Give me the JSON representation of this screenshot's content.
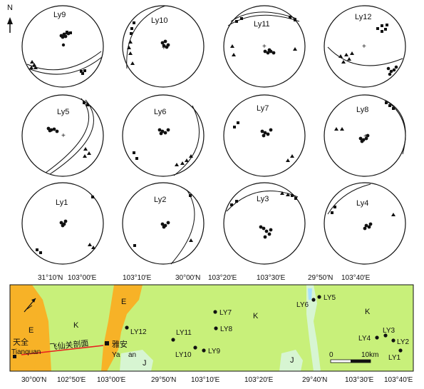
{
  "north_label": "N",
  "stereonets": [
    {
      "id": "Ly9",
      "label": "Ly9"
    },
    {
      "id": "Ly10",
      "label": "Ly10"
    },
    {
      "id": "Ly11",
      "label": "Ly11"
    },
    {
      "id": "Ly12",
      "label": "Ly12"
    },
    {
      "id": "Ly5",
      "label": "Ly5"
    },
    {
      "id": "Ly6",
      "label": "Ly6"
    },
    {
      "id": "Ly7",
      "label": "Ly7"
    },
    {
      "id": "Ly8",
      "label": "Ly8"
    },
    {
      "id": "Ly1",
      "label": "Ly1"
    },
    {
      "id": "Ly2",
      "label": "Ly2"
    },
    {
      "id": "Ly3",
      "label": "Ly3"
    },
    {
      "id": "Ly4",
      "label": "Ly4"
    }
  ],
  "map": {
    "top_coords": [
      {
        "text": "31°10′N"
      },
      {
        "text": "103°00′E"
      },
      {
        "text": "103°10′E"
      },
      {
        "text": "30°00′N"
      },
      {
        "text": "103°20′E"
      },
      {
        "text": "103°30′E"
      },
      {
        "text": "29°50′N"
      },
      {
        "text": "103°40′E"
      }
    ],
    "bottom_coords": [
      {
        "text": "30°00′N"
      },
      {
        "text": "102°50′E"
      },
      {
        "text": "103°00′E"
      },
      {
        "text": "29°50′N"
      },
      {
        "text": "103°10′E"
      },
      {
        "text": "103°20′E"
      },
      {
        "text": "29°40′N"
      },
      {
        "text": "103°30′E"
      },
      {
        "text": "103°40′E"
      }
    ],
    "units": {
      "E1": "E",
      "K1": "K",
      "E2": "E",
      "K2": "K",
      "K3": "K",
      "J1": "J",
      "J2": "J"
    },
    "places": {
      "tianquan_cn": "天全",
      "tianquan_en": "Tianquan",
      "yaan_cn": "雅安",
      "yaan_en_1": "Ya",
      "yaan_en_2": "an",
      "profile": "飞仙关剖面"
    },
    "sites": [
      {
        "id": "LY12",
        "label": "LY12"
      },
      {
        "id": "LY11",
        "label": "LY11"
      },
      {
        "id": "LY10",
        "label": "LY10"
      },
      {
        "id": "LY9",
        "label": "LY9"
      },
      {
        "id": "LY7",
        "label": "LY7"
      },
      {
        "id": "LY8",
        "label": "LY8"
      },
      {
        "id": "LY6",
        "label": "LY6"
      },
      {
        "id": "LY5",
        "label": "LY5"
      },
      {
        "id": "LY4",
        "label": "LY4"
      },
      {
        "id": "LY3",
        "label": "LY3"
      },
      {
        "id": "LY2",
        "label": "LY2"
      },
      {
        "id": "LY1",
        "label": "LY1"
      }
    ],
    "scale": {
      "start": "0",
      "end": "10km"
    }
  },
  "colors": {
    "map_green": "#c8f07a",
    "map_orange": "#f7b227",
    "map_pale": "#d7f5d2",
    "profile_red": "#e82020",
    "lake_blue": "#a8e0ff"
  }
}
